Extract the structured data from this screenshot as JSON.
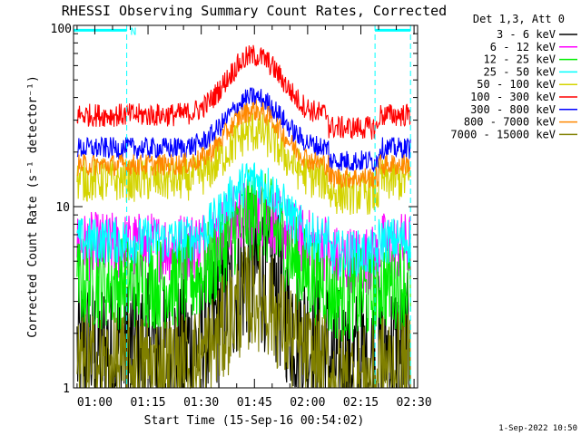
{
  "chart_data": {
    "type": "line",
    "title": "RHESSI Observing Summary Count Rates, Corrected",
    "xlabel": "Start Time (15-Sep-16 00:54:02)",
    "ylabel": "Corrected Count Rate (s⁻¹ detector⁻¹)",
    "yscale": "log",
    "ylim": [
      1,
      100
    ],
    "y_tick_labels": [
      "1",
      "10",
      "100"
    ],
    "xlim_minutes_after_0100": [
      -6,
      91
    ],
    "x_ticks": [
      {
        "label": "01:00",
        "minute": 0
      },
      {
        "label": "01:15",
        "minute": 15
      },
      {
        "label": "01:30",
        "minute": 30
      },
      {
        "label": "01:45",
        "minute": 45
      },
      {
        "label": "02:00",
        "minute": 60
      },
      {
        "label": "02:15",
        "minute": 75
      },
      {
        "label": "02:30",
        "minute": 90
      }
    ],
    "legend_title": "Det 1,3, Att 0",
    "legend_placement": "outside-right",
    "data_start_minute": -5,
    "data_end_minute": 89,
    "peak_minute": 45,
    "series": [
      {
        "name": "3 - 6 keV",
        "color": "#000000",
        "base": 1.6,
        "peak": 4.5,
        "spread": 1.0
      },
      {
        "name": "6 - 12 keV",
        "color": "#ff00ff",
        "base": 6.0,
        "peak": 9.5,
        "spread": 0.45
      },
      {
        "name": "12 - 25 keV",
        "color": "#00ee00",
        "base": 3.8,
        "peak": 9.0,
        "spread": 0.6
      },
      {
        "name": "25 - 50 keV",
        "color": "#00ffff",
        "base": 6.5,
        "peak": 14.0,
        "spread": 0.3
      },
      {
        "name": "50 - 100 keV",
        "color": "#d4d400",
        "base": 14.0,
        "peak": 26.0,
        "spread": 0.28
      },
      {
        "name": "100 - 300 keV",
        "color": "#ff0000",
        "base": 32.0,
        "peak": 68.0,
        "spread": 0.15
      },
      {
        "name": "300 - 800 keV",
        "color": "#0000ff",
        "base": 21.0,
        "peak": 40.0,
        "spread": 0.14
      },
      {
        "name": "800 - 7000 keV",
        "color": "#ff8800",
        "base": 17.0,
        "peak": 34.0,
        "spread": 0.14
      },
      {
        "name": "7000 - 15000 keV",
        "color": "#808000",
        "base": 1.3,
        "peak": 3.2,
        "spread": 0.7
      }
    ],
    "saa_markers": {
      "label": "N",
      "color": "#00ffff",
      "intervals": [
        [
          -6,
          9
        ],
        [
          79,
          89
        ]
      ],
      "level": 94
    },
    "footer_date": "1-Sep-2022 10:50",
    "grid": false
  }
}
